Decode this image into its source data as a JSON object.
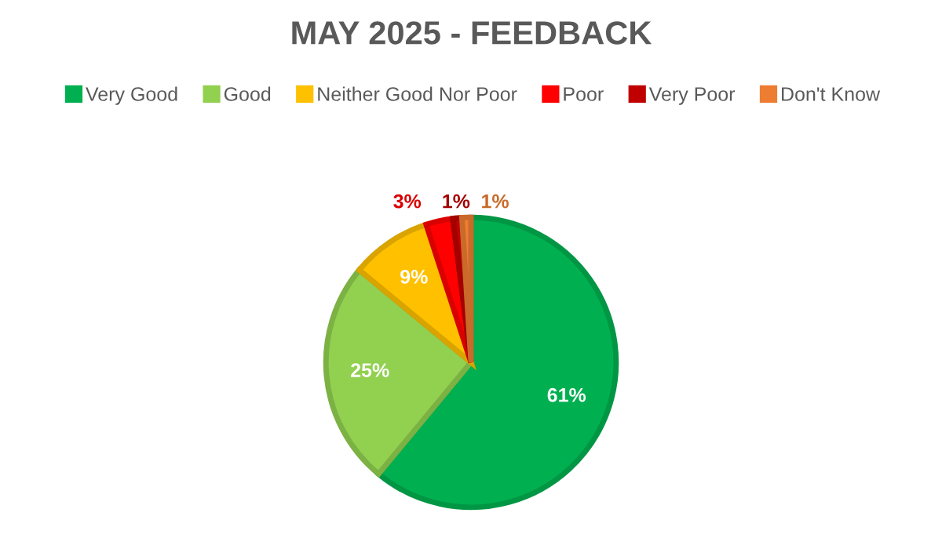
{
  "chart_data": {
    "type": "pie",
    "title": "MAY 2025 - FEEDBACK",
    "categories": [
      "Very Good",
      "Good",
      "Neither Good Nor Poor",
      "Poor",
      "Very Poor",
      "Don't Know"
    ],
    "values": [
      61,
      25,
      9,
      3,
      1,
      1
    ],
    "value_labels": [
      "61%",
      "25%",
      "9%",
      "3%",
      "1%",
      "1%"
    ],
    "colors": [
      "#00b050",
      "#92d050",
      "#ffc000",
      "#ff0000",
      "#c00000",
      "#ed7d31"
    ],
    "legend": "top"
  }
}
